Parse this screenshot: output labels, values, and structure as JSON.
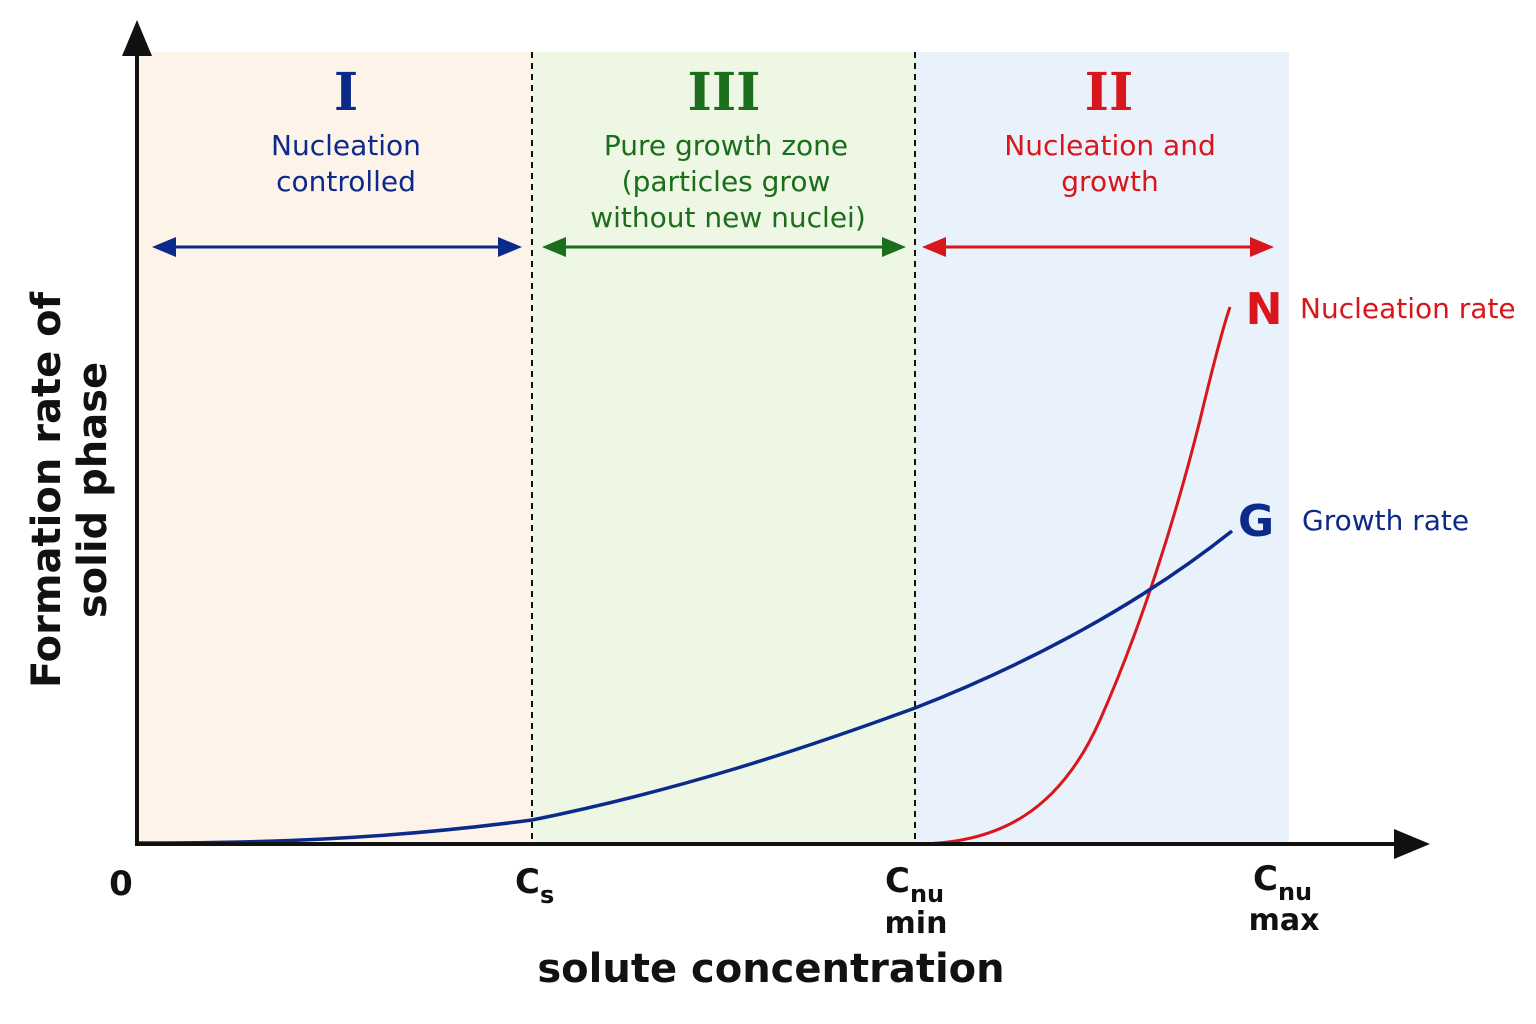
{
  "colors": {
    "zone_I_bg": "#fdf3e8",
    "zone_III_bg": "#eef6e4",
    "zone_II_bg": "#e9f1fb",
    "blue": "#0c2a8a",
    "green": "#1b6e1b",
    "red": "#d8161b",
    "axis": "#111111"
  },
  "zones": [
    {
      "numeral": "I",
      "line1": "Nucleation",
      "line2": "controlled",
      "line3": "",
      "color": "#0c2a8a"
    },
    {
      "numeral": "III",
      "line1": "Pure growth zone",
      "line2": "(particles grow",
      "line3": "without new nuclei)",
      "color": "#1b6e1b"
    },
    {
      "numeral": "II",
      "line1": "Nucleation and",
      "line2": "growth",
      "line3": "",
      "color": "#d8161b"
    }
  ],
  "axes": {
    "ylabel_line1": "Formation rate of",
    "ylabel_line2": "solid phase",
    "xlabel": "solute concentration",
    "ticks": {
      "origin": "0",
      "cs_main": "C",
      "cs_sub": "s",
      "cnumin_main": "C",
      "cnumin_sub": "nu",
      "cnumin_under": "min",
      "cnumax_main": "C",
      "cnumax_sub": "nu",
      "cnumax_under": "max"
    }
  },
  "curves": {
    "nucleation": {
      "letter": "N",
      "label": "Nucleation rate"
    },
    "growth": {
      "letter": "G",
      "label": "Growth rate"
    }
  }
}
